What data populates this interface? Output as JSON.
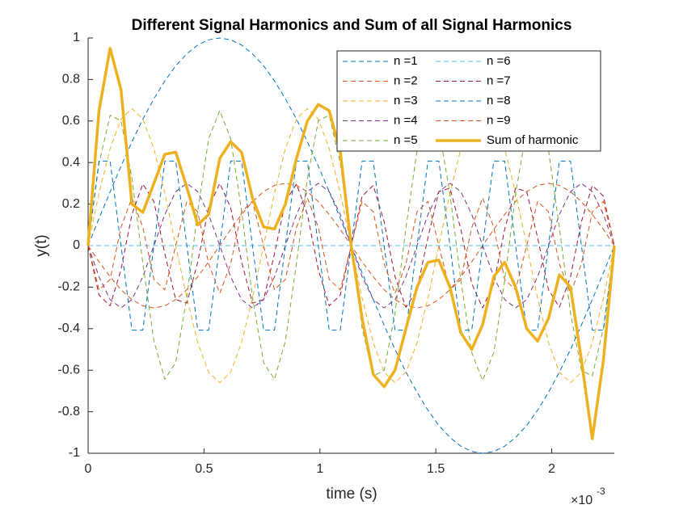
{
  "chart_data": {
    "type": "line",
    "title": "Different Signal Harmonics and Sum of all Signal Harmonics",
    "xlabel": "time (s)",
    "ylabel": "y(t)",
    "x_exponent": {
      "base": "×10",
      "power": "-3"
    },
    "xlim": [
      0,
      0.00227
    ],
    "ylim": [
      -1,
      1
    ],
    "xticks": [
      0,
      {
        "value": 0.0005,
        "label": "0.5"
      },
      {
        "value": 0.001,
        "label": "1"
      },
      {
        "value": 0.0015,
        "label": "1.5"
      },
      {
        "value": 0.002,
        "label": "2"
      }
    ],
    "yticks": [
      -1,
      -0.8,
      -0.6,
      -0.4,
      -0.2,
      0,
      0.2,
      0.4,
      0.6,
      0.8,
      1
    ],
    "grid": false,
    "legend": "upper right",
    "legend_columns": 2,
    "x": [
      0,
      4.7e-05,
      9.5e-05,
      0.000142,
      0.000189,
      0.000236,
      0.000284,
      0.000331,
      0.000378,
      0.000426,
      0.000473,
      0.00052,
      0.000568,
      0.000615,
      0.000662,
      0.000709,
      0.000757,
      0.000804,
      0.000851,
      0.000899,
      0.000946,
      0.000993,
      0.00104,
      0.001088,
      0.001135,
      0.001182,
      0.00123,
      0.001277,
      0.001324,
      0.001371,
      0.001419,
      0.001466,
      0.001513,
      0.001561,
      0.001608,
      0.001655,
      0.001702,
      0.00175,
      0.001797,
      0.001844,
      0.001892,
      0.001939,
      0.001986,
      0.002033,
      0.002081,
      0.002128,
      0.002175,
      0.002223,
      0.00227
    ],
    "series": [
      {
        "name": "n =1",
        "color": "#0072BD",
        "style": "dashed",
        "values": [
          0,
          0.131,
          0.259,
          0.383,
          0.5,
          0.609,
          0.707,
          0.793,
          0.866,
          0.924,
          0.966,
          0.991,
          1,
          0.991,
          0.966,
          0.924,
          0.866,
          0.793,
          0.707,
          0.609,
          0.5,
          0.383,
          0.259,
          0.131,
          0,
          -0.131,
          -0.259,
          -0.383,
          -0.5,
          -0.609,
          -0.707,
          -0.793,
          -0.866,
          -0.924,
          -0.966,
          -0.991,
          -1,
          -0.991,
          -0.966,
          -0.924,
          -0.866,
          -0.793,
          -0.707,
          -0.609,
          -0.5,
          -0.383,
          -0.259,
          -0.131,
          0
        ]
      },
      {
        "name": "n =2",
        "color": "#D95319",
        "style": "dashed",
        "values": [
          0,
          -0.078,
          -0.15,
          -0.212,
          -0.26,
          -0.29,
          -0.3,
          -0.29,
          -0.26,
          -0.212,
          -0.15,
          -0.078,
          0,
          0.078,
          0.15,
          0.212,
          0.26,
          0.29,
          0.3,
          0.29,
          0.26,
          0.212,
          0.15,
          0.078,
          0,
          -0.078,
          -0.15,
          -0.212,
          -0.26,
          -0.29,
          -0.3,
          -0.29,
          -0.26,
          -0.212,
          -0.15,
          -0.078,
          0,
          0.078,
          0.15,
          0.212,
          0.26,
          0.29,
          0.3,
          0.29,
          0.26,
          0.212,
          0.15,
          0.078,
          0
        ]
      },
      {
        "name": "n =3",
        "color": "#EDB120",
        "style": "dashed",
        "values": [
          0,
          0.253,
          0.467,
          0.61,
          0.66,
          0.61,
          0.467,
          0.253,
          0,
          -0.253,
          -0.467,
          -0.61,
          -0.66,
          -0.61,
          -0.467,
          -0.253,
          0,
          0.253,
          0.467,
          0.61,
          0.66,
          0.61,
          0.467,
          0.253,
          0,
          -0.253,
          -0.467,
          -0.61,
          -0.66,
          -0.61,
          -0.467,
          -0.253,
          0,
          0.253,
          0.467,
          0.61,
          0.66,
          0.61,
          0.467,
          0.253,
          0,
          -0.253,
          -0.467,
          -0.61,
          -0.66,
          -0.61,
          -0.467,
          -0.253,
          0
        ]
      },
      {
        "name": "n =4",
        "color": "#7E2F8E",
        "style": "dashed",
        "values": [
          0,
          -0.15,
          -0.26,
          -0.3,
          -0.26,
          -0.15,
          0,
          0.15,
          0.26,
          0.3,
          0.26,
          0.15,
          0,
          -0.15,
          -0.26,
          -0.3,
          -0.26,
          -0.15,
          0,
          0.15,
          0.26,
          0.3,
          0.26,
          0.15,
          0,
          -0.15,
          -0.26,
          -0.3,
          -0.26,
          -0.15,
          0,
          0.15,
          0.26,
          0.3,
          0.26,
          0.15,
          0,
          -0.15,
          -0.26,
          -0.3,
          -0.26,
          -0.15,
          0,
          0.15,
          0.26,
          0.3,
          0.26,
          0.15,
          0
        ]
      },
      {
        "name": "n =5",
        "color": "#77AC30",
        "style": "dashed",
        "values": [
          0,
          0.396,
          0.628,
          0.601,
          0.325,
          -0.085,
          -0.46,
          -0.644,
          -0.563,
          -0.249,
          0.168,
          0.515,
          0.65,
          0.515,
          0.168,
          -0.249,
          -0.563,
          -0.644,
          -0.46,
          -0.085,
          0.325,
          0.601,
          0.628,
          0.396,
          0,
          -0.396,
          -0.628,
          -0.601,
          -0.325,
          0.085,
          0.46,
          0.644,
          0.563,
          0.249,
          -0.168,
          -0.515,
          -0.65,
          -0.515,
          -0.168,
          0.249,
          0.563,
          0.644,
          0.46,
          0.085,
          -0.325,
          -0.601,
          -0.628,
          -0.396,
          0
        ]
      },
      {
        "name": "n =6",
        "color": "#4DBEEE",
        "style": "dashed",
        "values": [
          0,
          0,
          0,
          0,
          0,
          0,
          0,
          0,
          0,
          0,
          0,
          0,
          0,
          0,
          0,
          0,
          0,
          0,
          0,
          0,
          0,
          0,
          0,
          0,
          0,
          0,
          0,
          0,
          0,
          0,
          0,
          0,
          0,
          0,
          0,
          0,
          0,
          0,
          0,
          0,
          0,
          0,
          0,
          0,
          0,
          0,
          0,
          0,
          0
        ]
      },
      {
        "name": "n =7",
        "color": "#A2142F",
        "style": "dashed",
        "values": [
          0,
          -0.238,
          -0.29,
          -0.115,
          0.15,
          0.297,
          0.212,
          -0.039,
          -0.26,
          -0.277,
          -0.078,
          0.183,
          0.3,
          0.183,
          -0.078,
          -0.277,
          -0.26,
          -0.039,
          0.212,
          0.297,
          0.15,
          -0.115,
          -0.29,
          -0.238,
          0,
          0.238,
          0.29,
          0.115,
          -0.15,
          -0.297,
          -0.212,
          0.039,
          0.26,
          0.277,
          0.078,
          -0.183,
          -0.3,
          -0.183,
          0.078,
          0.277,
          0.26,
          0.039,
          -0.212,
          -0.297,
          -0.15,
          0.115,
          0.29,
          0.238,
          0
        ]
      },
      {
        "name": "n =8",
        "color": "#0072BD",
        "style": "dashed",
        "values": [
          0,
          0.407,
          0.407,
          0,
          -0.407,
          -0.407,
          0,
          0.407,
          0.407,
          0,
          -0.407,
          -0.407,
          0,
          0.407,
          0.407,
          0,
          -0.407,
          -0.407,
          0,
          0.407,
          0.407,
          0,
          -0.407,
          -0.407,
          0,
          0.407,
          0.407,
          0,
          -0.407,
          -0.407,
          0,
          0.407,
          0.407,
          0,
          -0.407,
          -0.407,
          0,
          0.407,
          0.407,
          0,
          -0.407,
          -0.407,
          0,
          0.407,
          0.407,
          0,
          -0.407,
          -0.407,
          0
        ]
      },
      {
        "name": "n =9",
        "color": "#D95319",
        "style": "dashed",
        "values": [
          0,
          -0.213,
          -0.163,
          0.088,
          0.23,
          0.088,
          -0.163,
          -0.213,
          0,
          0.213,
          0.163,
          -0.088,
          -0.23,
          -0.088,
          0.163,
          0.213,
          0,
          -0.213,
          -0.163,
          0.088,
          0.23,
          0.088,
          -0.163,
          -0.213,
          0,
          0.213,
          0.163,
          -0.088,
          -0.23,
          -0.088,
          0.163,
          0.213,
          0,
          -0.213,
          -0.163,
          0.088,
          0.23,
          0.088,
          -0.163,
          -0.213,
          0,
          0.213,
          0.163,
          -0.088,
          -0.23,
          -0.088,
          0.163,
          0.213,
          0
        ]
      },
      {
        "name": "Sum of harmonic",
        "color": "#EDB120",
        "style": "solid",
        "values": [
          0,
          0.65,
          0.95,
          0.75,
          0.2,
          0.16,
          0.3,
          0.44,
          0.45,
          0.28,
          0.1,
          0.15,
          0.42,
          0.5,
          0.45,
          0.23,
          0.09,
          0.08,
          0.2,
          0.42,
          0.6,
          0.68,
          0.65,
          0.45,
          0,
          -0.35,
          -0.62,
          -0.68,
          -0.6,
          -0.4,
          -0.2,
          -0.08,
          -0.07,
          -0.2,
          -0.42,
          -0.5,
          -0.38,
          -0.15,
          -0.08,
          -0.2,
          -0.4,
          -0.46,
          -0.35,
          -0.14,
          -0.2,
          -0.55,
          -0.93,
          -0.55,
          0
        ]
      }
    ]
  }
}
